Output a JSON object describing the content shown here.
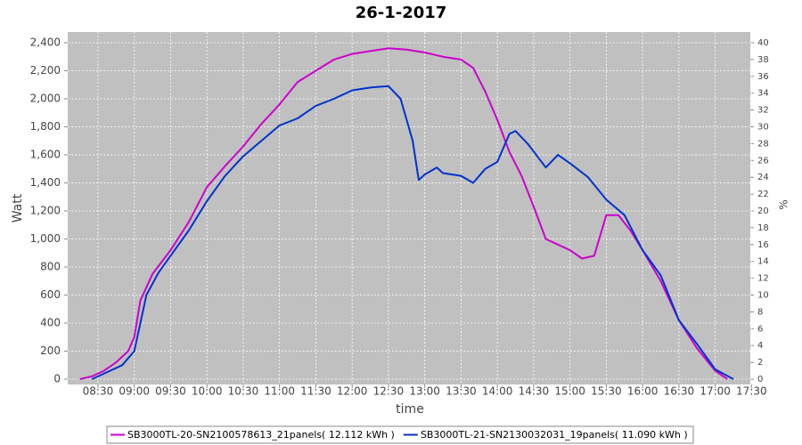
{
  "chart_data": {
    "type": "line",
    "title": "26-1-2017",
    "x_label": "time",
    "y_label": "Watt",
    "y2_label": "%",
    "xlim": [
      "08:05",
      "17:29"
    ],
    "xticks": [
      "08:30",
      "09:00",
      "09:30",
      "10:00",
      "10:30",
      "11:00",
      "11:30",
      "12:00",
      "12:30",
      "13:00",
      "13:30",
      "14:00",
      "14:30",
      "15:00",
      "15:30",
      "16:00",
      "16:30",
      "17:00",
      "17:30"
    ],
    "ylim": [
      -38,
      2476
    ],
    "yticks": [
      0,
      200,
      400,
      600,
      800,
      {
        "value": 1000,
        "label": "1,000"
      },
      {
        "value": 1200,
        "label": "1,200"
      },
      {
        "value": 1400,
        "label": "1,400"
      },
      {
        "value": 1600,
        "label": "1,600"
      },
      {
        "value": 1800,
        "label": "1,800"
      },
      {
        "value": 2000,
        "label": "2,000"
      },
      {
        "value": 2200,
        "label": "2,200"
      },
      {
        "value": 2400,
        "label": "2,400"
      }
    ],
    "y2lim": [
      -0.63,
      41.27
    ],
    "y2ticks": [
      0,
      2,
      4,
      6,
      8,
      10,
      12,
      14,
      16,
      18,
      20,
      22,
      24,
      26,
      28,
      30,
      32,
      34,
      36,
      38,
      40
    ],
    "grid": true,
    "legend": "bottom",
    "series": [
      {
        "name": "SB3000TL-20-SN2100578613_21panels( 12.112 kWh )",
        "color": "#cc00cc",
        "x": [
          "08:15",
          "08:25",
          "08:35",
          "08:45",
          "08:55",
          "09:00",
          "09:05",
          "09:15",
          "09:30",
          "09:45",
          "10:00",
          "10:15",
          "10:30",
          "10:45",
          "11:00",
          "11:15",
          "11:30",
          "11:45",
          "12:00",
          "12:15",
          "12:30",
          "12:45",
          "13:00",
          "13:15",
          "13:30",
          "13:40",
          "13:50",
          "14:00",
          "14:10",
          "14:20",
          "14:30",
          "14:40",
          "14:50",
          "15:00",
          "15:10",
          "15:20",
          "15:30",
          "15:40",
          "15:50",
          "16:00",
          "16:15",
          "16:30",
          "16:45",
          "17:00",
          "17:10"
        ],
        "values": [
          0,
          20,
          60,
          120,
          200,
          300,
          560,
          750,
          920,
          1120,
          1370,
          1520,
          1660,
          1820,
          1960,
          2120,
          2200,
          2280,
          2320,
          2340,
          2360,
          2350,
          2330,
          2300,
          2280,
          2220,
          2050,
          1850,
          1620,
          1450,
          1230,
          1000,
          960,
          920,
          860,
          880,
          1170,
          1170,
          1060,
          920,
          700,
          420,
          220,
          60,
          0
        ]
      },
      {
        "name": "SB3000TL-21-SN2130032031_19panels( 11.090 kWh )",
        "color": "#0033cc",
        "x": [
          "08:25",
          "08:40",
          "08:50",
          "09:00",
          "09:10",
          "09:20",
          "09:30",
          "09:45",
          "10:00",
          "10:15",
          "10:30",
          "10:45",
          "11:00",
          "11:15",
          "11:30",
          "11:45",
          "12:00",
          "12:15",
          "12:30",
          "12:40",
          "12:50",
          "12:55",
          "13:00",
          "13:10",
          "13:15",
          "13:30",
          "13:40",
          "13:50",
          "14:00",
          "14:10",
          "14:15",
          "14:25",
          "14:40",
          "14:50",
          "15:00",
          "15:15",
          "15:30",
          "15:45",
          "16:00",
          "16:15",
          "16:30",
          "16:45",
          "17:00",
          "17:15"
        ],
        "values": [
          0,
          60,
          100,
          200,
          600,
          760,
          880,
          1060,
          1270,
          1450,
          1590,
          1700,
          1810,
          1860,
          1950,
          2000,
          2060,
          2080,
          2090,
          2000,
          1700,
          1420,
          1460,
          1510,
          1470,
          1450,
          1400,
          1500,
          1550,
          1750,
          1770,
          1680,
          1510,
          1600,
          1540,
          1440,
          1280,
          1170,
          920,
          740,
          420,
          250,
          70,
          0
        ]
      }
    ]
  }
}
